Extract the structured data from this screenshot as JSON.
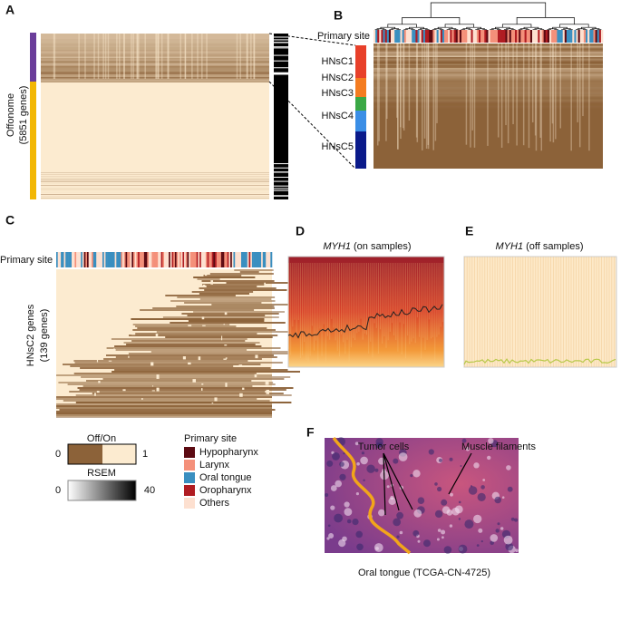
{
  "panels": {
    "a": {
      "label": "A",
      "ylabel": [
        "Offonome",
        "(5851 genes)"
      ]
    },
    "b": {
      "label": "B",
      "site": "Primary site",
      "clusters": [
        "HNsC1",
        "HNsC2",
        "HNsC3",
        "HNsC4",
        "HNsC5"
      ]
    },
    "c": {
      "label": "C",
      "site": "Primary site",
      "ylabel": [
        "HNsC2 genes",
        "(139 genes)"
      ]
    },
    "d": {
      "label": "D",
      "gene": "MYH1",
      "title": " (on samples)"
    },
    "e": {
      "label": "E",
      "gene": "MYH1",
      "title": " (off samples)"
    },
    "f": {
      "label": "F",
      "callouts": [
        "Tumor cells",
        "Muscle filaments"
      ],
      "caption": "Oral tongue (TCGA-CN-4725)"
    }
  },
  "legend": {
    "offon": {
      "title": "Off/On",
      "low": "0",
      "high": "1"
    },
    "rsem": {
      "title": "RSEM",
      "low": "0",
      "high": "40"
    },
    "site": {
      "title": "Primary site",
      "items": [
        "Hypopharynx",
        "Larynx",
        "Oral tongue",
        "Oropharynx",
        "Others"
      ]
    }
  }
}
